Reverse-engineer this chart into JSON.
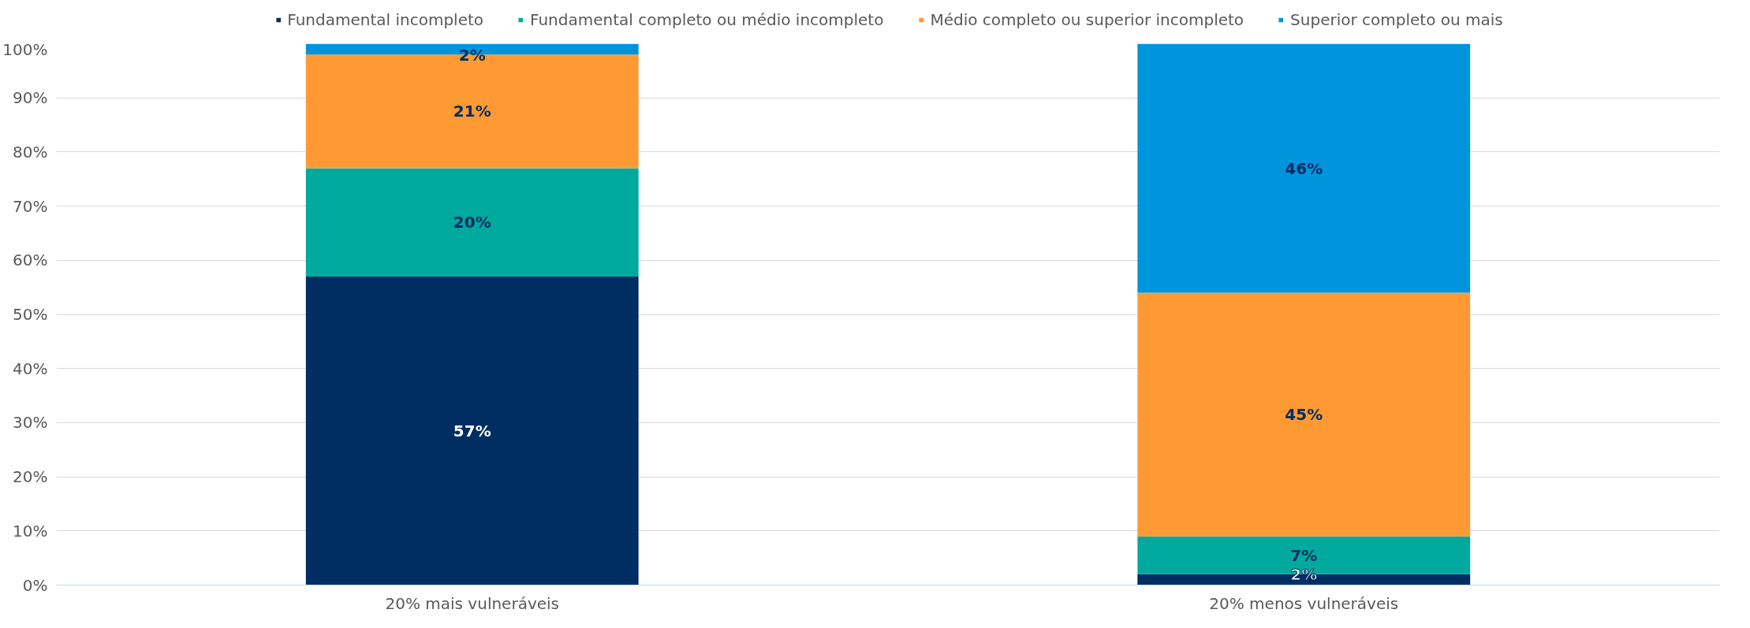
{
  "chart_data": {
    "type": "bar",
    "stacked": true,
    "categories": [
      "20% mais vulneráveis",
      "20% menos vulneráveis"
    ],
    "series": [
      {
        "name": "Fundamental incompleto",
        "color": "#002d62",
        "values": [
          57,
          2
        ],
        "value_labels": [
          "57%",
          "2%"
        ]
      },
      {
        "name": "Fundamental completo ou médio incompleto",
        "color": "#00a99d",
        "values": [
          20,
          7
        ],
        "value_labels": [
          "20%",
          "7%"
        ]
      },
      {
        "name": "Médio completo ou superior incompleto",
        "color": "#ff9933",
        "values": [
          21,
          45
        ],
        "value_labels": [
          "21%",
          "45%"
        ]
      },
      {
        "name": "Superior completo ou mais",
        "color": "#0094dc",
        "values": [
          2,
          46
        ],
        "value_labels": [
          "2%",
          "46%"
        ]
      }
    ],
    "ylim": [
      0,
      100
    ],
    "yticks": [
      {
        "value": 0,
        "label": "0%"
      },
      {
        "value": 10,
        "label": "10%"
      },
      {
        "value": 20,
        "label": "20%"
      },
      {
        "value": 30,
        "label": "30%"
      },
      {
        "value": 40,
        "label": "40%"
      },
      {
        "value": 50,
        "label": "50%"
      },
      {
        "value": 60,
        "label": "60%"
      },
      {
        "value": 70,
        "label": "70%"
      },
      {
        "value": 80,
        "label": "80%"
      },
      {
        "value": 90,
        "label": "90%"
      },
      {
        "value": 100,
        "label": "100%"
      }
    ],
    "grid": "y",
    "legend": "top"
  }
}
